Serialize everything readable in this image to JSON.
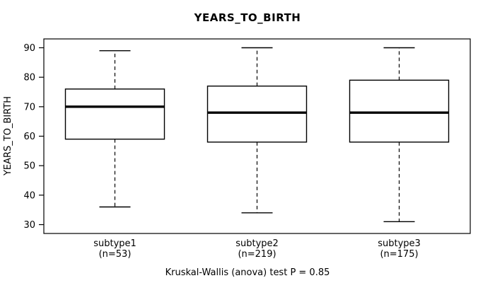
{
  "chart_data": {
    "type": "boxplot",
    "title": "YEARS_TO_BIRTH",
    "ylabel": "YEARS_TO_BIRTH",
    "annotation": "Kruskal-Wallis (anova) test P = 0.85",
    "ylim": [
      27,
      93
    ],
    "yticks": [
      30,
      40,
      50,
      60,
      70,
      80,
      90
    ],
    "grid": false,
    "colors": {
      "box_stroke": "#000000",
      "box_fill": "#ffffff",
      "median": "#000000",
      "whisker": "#000000"
    },
    "groups": [
      {
        "label": "subtype1",
        "sublabel": "(n=53)",
        "whisker_low": 36,
        "q1": 59,
        "median": 70,
        "q3": 76,
        "whisker_high": 89
      },
      {
        "label": "subtype2",
        "sublabel": "(n=219)",
        "whisker_low": 34,
        "q1": 58,
        "median": 68,
        "q3": 77,
        "whisker_high": 90
      },
      {
        "label": "subtype3",
        "sublabel": "(n=175)",
        "whisker_low": 31,
        "q1": 58,
        "median": 68,
        "q3": 79,
        "whisker_high": 90
      }
    ]
  }
}
